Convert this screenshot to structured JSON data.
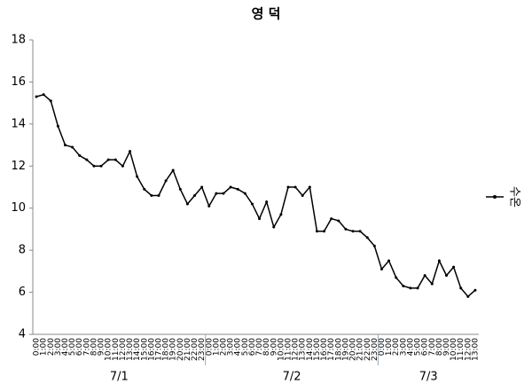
{
  "chart_data": {
    "type": "line",
    "title": "영 덕",
    "categories": [
      "0:00",
      "1:00",
      "2:00",
      "3:00",
      "4:00",
      "5:00",
      "6:00",
      "7:00",
      "8:00",
      "9:00",
      "10:00",
      "11:00",
      "12:00",
      "13:00",
      "14:00",
      "15:00",
      "16:00",
      "17:00",
      "18:00",
      "19:00",
      "20:00",
      "21:00",
      "22:00",
      "23:00",
      "0:00",
      "1:00",
      "2:00",
      "3:00",
      "4:00",
      "5:00",
      "6:00",
      "7:00",
      "8:00",
      "9:00",
      "10:00",
      "11:00",
      "12:00",
      "13:00",
      "14:00",
      "15:00",
      "16:00",
      "17:00",
      "18:00",
      "19:00",
      "20:00",
      "21:00",
      "22:00",
      "23:00",
      "0:00",
      "1:00",
      "2:00",
      "3:00",
      "4:00",
      "5:00",
      "6:00",
      "7:00",
      "8:00",
      "9:00",
      "10:00",
      "11:00",
      "12:00",
      "13:00"
    ],
    "groups": [
      "7/1",
      "7/2",
      "7/3"
    ],
    "series": [
      {
        "name": "수온",
        "color": "#000000",
        "values": [
          15.3,
          15.4,
          15.1,
          13.9,
          13.0,
          12.9,
          12.5,
          12.3,
          12.0,
          12.0,
          12.3,
          12.3,
          12.0,
          12.7,
          11.5,
          10.9,
          10.6,
          10.6,
          11.3,
          11.8,
          10.9,
          10.2,
          10.6,
          11.0,
          10.1,
          10.7,
          10.7,
          11.0,
          10.9,
          10.7,
          10.2,
          9.5,
          10.3,
          9.1,
          9.7,
          11.0,
          11.0,
          10.6,
          11.0,
          8.9,
          8.9,
          9.5,
          9.4,
          9.0,
          8.9,
          8.9,
          8.6,
          8.2,
          7.1,
          7.5,
          6.7,
          6.3,
          6.2,
          6.2,
          6.8,
          6.4,
          7.5,
          6.8,
          7.2,
          6.2,
          5.8,
          6.1
        ]
      }
    ],
    "ylim": [
      4,
      18
    ],
    "yticks": [
      4,
      6,
      8,
      10,
      12,
      14,
      16,
      18
    ],
    "grid": false,
    "legend": "right"
  }
}
